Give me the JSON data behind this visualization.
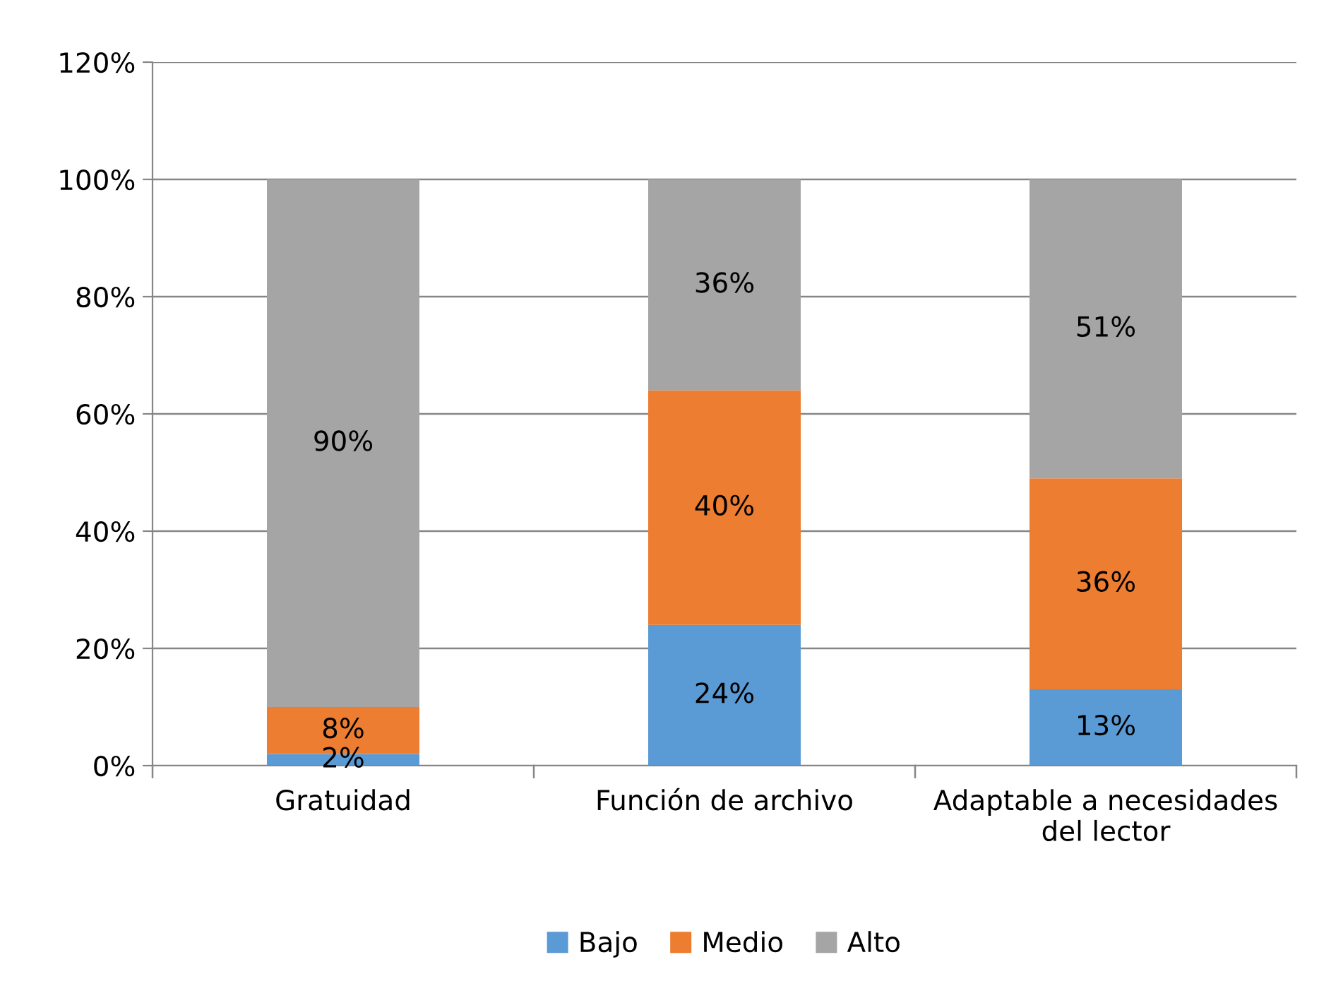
{
  "chart_data": {
    "type": "bar",
    "stacked": true,
    "categories": [
      "Gratuidad",
      "Función de archivo",
      "Adaptable a necesidades\ndel lector"
    ],
    "series": [
      {
        "name": "Bajo",
        "color": "#5b9bd5",
        "values": [
          2,
          24,
          13
        ],
        "value_labels": [
          "2%",
          "24%",
          "13%"
        ]
      },
      {
        "name": "Medio",
        "color": "#ed7d31",
        "values": [
          8,
          40,
          36
        ],
        "value_labels": [
          "8%",
          "40%",
          "36%"
        ]
      },
      {
        "name": "Alto",
        "color": "#a5a5a5",
        "values": [
          90,
          36,
          51
        ],
        "value_labels": [
          "90%",
          "36%",
          "51%"
        ]
      }
    ],
    "ylim": [
      0,
      120
    ],
    "yticks": [
      {
        "value": 0,
        "label": "0%"
      },
      {
        "value": 20,
        "label": "20%"
      },
      {
        "value": 40,
        "label": "40%"
      },
      {
        "value": 60,
        "label": "60%"
      },
      {
        "value": 80,
        "label": "80%"
      },
      {
        "value": 100,
        "label": "100%"
      },
      {
        "value": 120,
        "label": "120%"
      }
    ],
    "grid": "y",
    "legend": "bottom"
  }
}
